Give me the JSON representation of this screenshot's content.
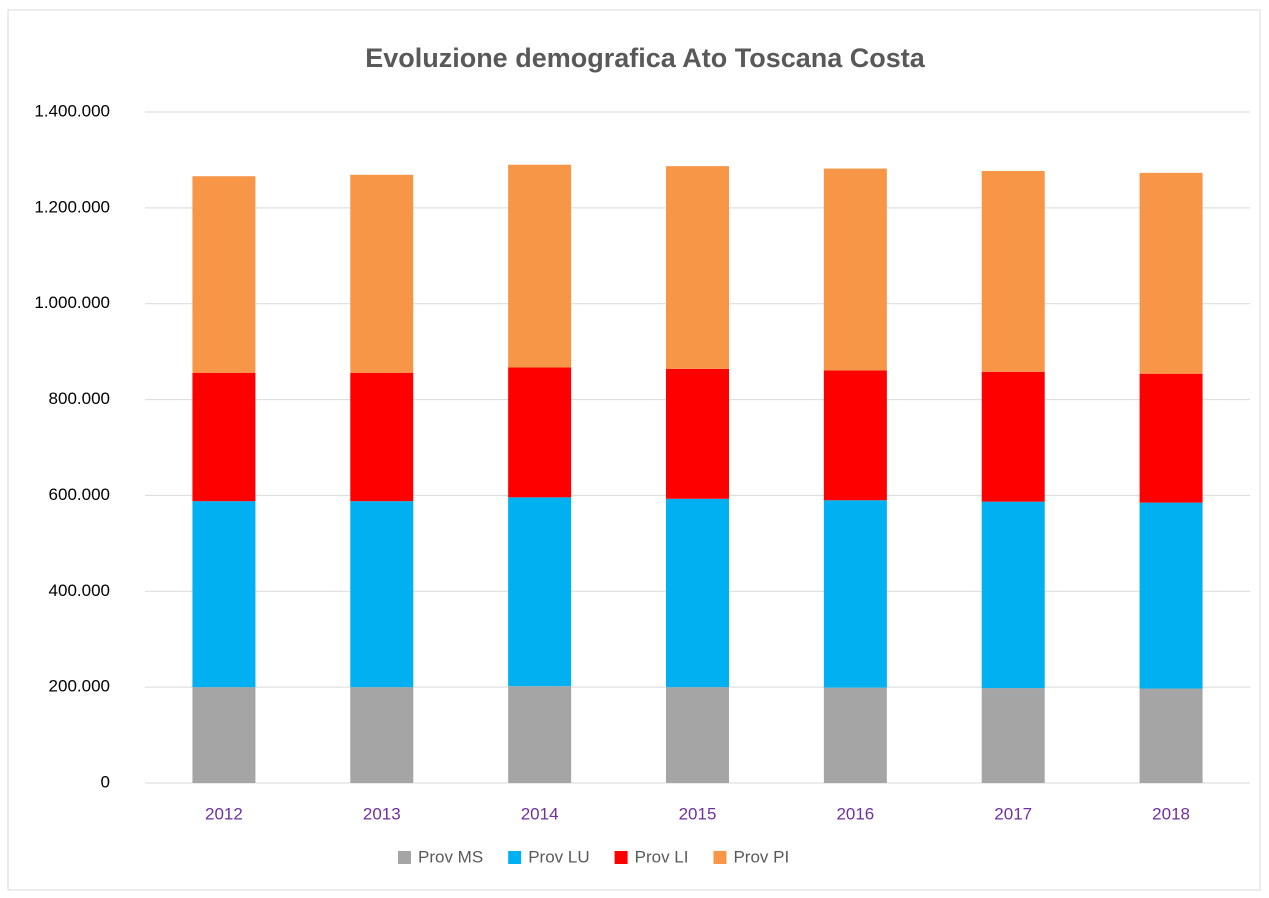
{
  "chart_data": {
    "type": "stacked_bar",
    "title": "Evoluzione demografica Ato Toscana Costa",
    "categories": [
      "2012",
      "2013",
      "2014",
      "2015",
      "2016",
      "2017",
      "2018"
    ],
    "series": [
      {
        "name": "Prov MS",
        "color": "#a5a5a5",
        "values": [
          200000,
          200000,
          202000,
          200000,
          199000,
          198000,
          197000
        ]
      },
      {
        "name": "Prov LU",
        "color": "#00b0f0",
        "values": [
          388000,
          388000,
          394000,
          393000,
          391000,
          389000,
          388000
        ]
      },
      {
        "name": "Prov LI",
        "color": "#ff0000",
        "values": [
          268000,
          268000,
          271000,
          271000,
          271000,
          271000,
          269000
        ]
      },
      {
        "name": "Prov PI",
        "color": "#f79646",
        "values": [
          410000,
          413000,
          423000,
          423000,
          421000,
          419000,
          419000
        ]
      }
    ],
    "ylim": [
      0,
      1400000
    ],
    "yticks": [
      0,
      {
        "value": 200000,
        "label": "200.000"
      },
      {
        "value": 400000,
        "label": "400.000"
      },
      {
        "value": 600000,
        "label": "600.000"
      },
      {
        "value": 800000,
        "label": "800.000"
      },
      {
        "value": 1000000,
        "label": "1.000.000"
      },
      {
        "value": 1200000,
        "label": "1.200.000"
      },
      {
        "value": 1400000,
        "label": "1.400.000"
      }
    ],
    "grid": true,
    "legend": "bottom"
  }
}
